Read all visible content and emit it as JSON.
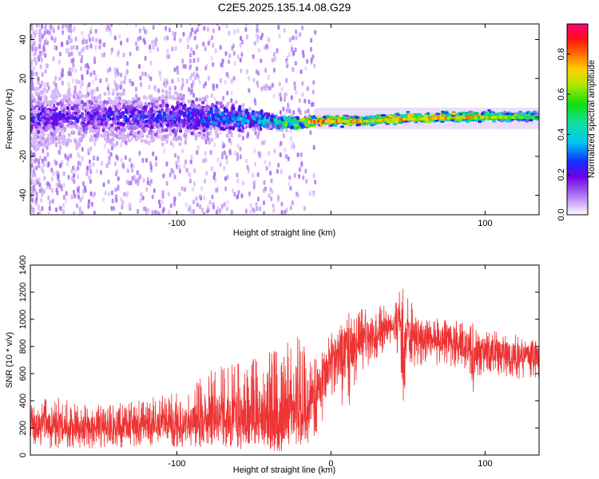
{
  "figure_title": "C2E5.2025.135.14.08.G29",
  "chart_data": [
    {
      "type": "heatmap",
      "panel": "spectrogram",
      "xlabel": "Height of straight line (km)",
      "ylabel": "Frequency (Hz)",
      "xlim": [
        -195,
        135
      ],
      "ylim": [
        -50,
        48
      ],
      "x_ticks": [
        -100,
        0,
        100
      ],
      "x_tick_labels": [
        "-100",
        "",
        "100"
      ],
      "y_ticks": [
        -40,
        -20,
        0,
        20,
        40
      ],
      "y_tick_labels": [
        "-40",
        "-20",
        "0",
        "20",
        "40"
      ],
      "colorbar": {
        "label": "Normalized spectral amplitude",
        "range": [
          0,
          0.95
        ],
        "ticks": [
          0.0,
          0.2,
          0.4,
          0.6,
          0.8
        ],
        "tick_labels": [
          "0.0",
          "0.2",
          "0.4",
          "0.6",
          "0.8"
        ],
        "colormap": [
          "#ffffff",
          "#c090f0",
          "#7000e8",
          "#1030ff",
          "#00e0e0",
          "#10e010",
          "#d8e000",
          "#ff8000",
          "#ff1010",
          "#ff0080"
        ]
      },
      "description_points": [
        {
          "x": -190,
          "freq_center": 0,
          "freq_spread": 10,
          "amplitude": 0.25
        },
        {
          "x": -150,
          "freq_center": 0,
          "freq_spread": 9,
          "amplitude": 0.25
        },
        {
          "x": -100,
          "freq_center": 0,
          "freq_spread": 8,
          "amplitude": 0.3
        },
        {
          "x": -70,
          "freq_center": 0,
          "freq_spread": 5,
          "amplitude": 0.4
        },
        {
          "x": -50,
          "freq_center": -1,
          "freq_spread": 3,
          "amplitude": 0.45
        },
        {
          "x": -30,
          "freq_center": -3,
          "freq_spread": 2,
          "amplitude": 0.6
        },
        {
          "x": -10,
          "freq_center": -2,
          "freq_spread": 1.5,
          "amplitude": 0.9
        },
        {
          "x": 20,
          "freq_center": -2,
          "freq_spread": 1.5,
          "amplitude": 0.8
        },
        {
          "x": 45,
          "freq_center": -1,
          "freq_spread": 1.5,
          "amplitude": 0.85
        },
        {
          "x": 90,
          "freq_center": 0,
          "freq_spread": 1.5,
          "amplitude": 0.8
        },
        {
          "x": 130,
          "freq_center": 0,
          "freq_spread": 1.5,
          "amplitude": 0.6
        }
      ]
    },
    {
      "type": "line",
      "panel": "snr",
      "xlabel": "Height of straight line (km)",
      "ylabel": "SNR (10 * v/v)",
      "xlim": [
        -195,
        135
      ],
      "ylim": [
        0,
        1400
      ],
      "x_ticks": [
        -100,
        0,
        100
      ],
      "x_tick_labels": [
        "-100",
        "0",
        "100"
      ],
      "y_ticks": [
        0,
        200,
        400,
        600,
        800,
        1000,
        1200,
        1400
      ],
      "y_tick_labels": [
        "0",
        "200",
        "400",
        "600",
        "800",
        "1000",
        "1200",
        "1400"
      ],
      "series": [
        {
          "color": "#ee3333",
          "envelope_x": [
            -195,
            -180,
            -160,
            -140,
            -120,
            -100,
            -90,
            -80,
            -70,
            -60,
            -50,
            -40,
            -30,
            -20,
            -10,
            -5,
            0,
            5,
            10,
            15,
            20,
            30,
            40,
            45,
            47,
            50,
            60,
            70,
            80,
            90,
            92,
            95,
            100,
            110,
            120,
            135
          ],
          "envelope_low": [
            60,
            40,
            50,
            40,
            60,
            60,
            60,
            60,
            50,
            40,
            40,
            30,
            20,
            10,
            150,
            250,
            450,
            400,
            280,
            500,
            620,
            720,
            820,
            700,
            300,
            640,
            660,
            660,
            640,
            600,
            380,
            560,
            600,
            580,
            560,
            540
          ],
          "envelope_high": [
            420,
            440,
            380,
            380,
            420,
            460,
            480,
            700,
            650,
            700,
            720,
            760,
            820,
            900,
            700,
            800,
            920,
            980,
            1050,
            1050,
            1080,
            1100,
            1120,
            1250,
            1400,
            1150,
            1050,
            1000,
            1000,
            960,
            980,
            960,
            950,
            900,
            900,
            880
          ],
          "center": [
            220,
            220,
            200,
            200,
            220,
            240,
            260,
            280,
            280,
            270,
            260,
            250,
            250,
            300,
            450,
            560,
            700,
            720,
            760,
            800,
            850,
            900,
            940,
            940,
            650,
            900,
            870,
            850,
            830,
            800,
            620,
            780,
            780,
            760,
            740,
            720
          ]
        }
      ]
    }
  ]
}
